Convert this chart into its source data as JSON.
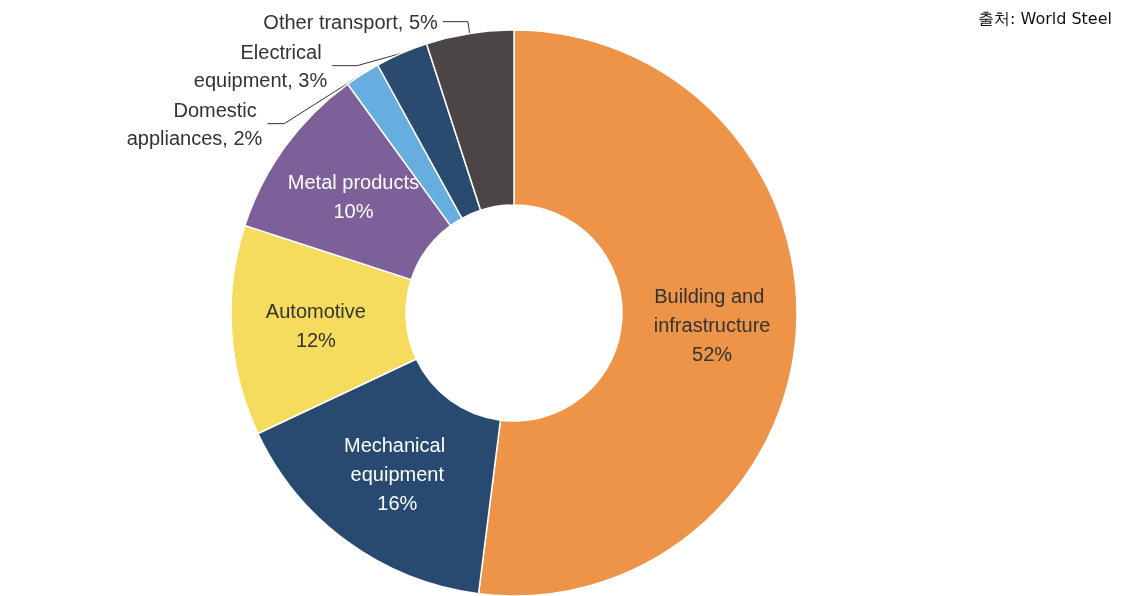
{
  "chart_data": {
    "type": "donut",
    "categories": [
      "Building and infrastructure",
      "Mechanical equipment",
      "Automotive",
      "Metal products",
      "Domestic appliances",
      "Electrical equipment",
      "Other transport"
    ],
    "values": [
      52,
      16,
      12,
      10,
      2,
      3,
      5
    ],
    "value_labels": [
      "52%",
      "16%",
      "12%",
      "10%",
      "2%",
      "3%",
      "5%"
    ],
    "colors": [
      "#ee9449",
      "#284a70",
      "#f5dc5e",
      "#7d5f9a",
      "#66ade0",
      "#2b4a6f",
      "#4b4645"
    ],
    "annotations": [
      "출처: World Steel"
    ],
    "legend": false
  }
}
